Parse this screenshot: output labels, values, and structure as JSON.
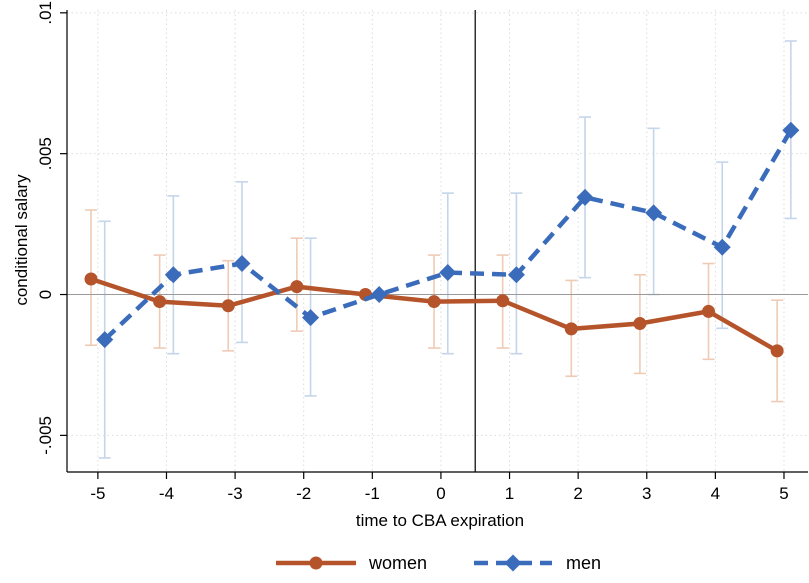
{
  "chart_data": {
    "type": "line",
    "xlabel": "time to CBA expiration",
    "ylabel": "conditional salary",
    "x_ticks": [
      -5,
      -4,
      -3,
      -2,
      -1,
      0,
      1,
      2,
      3,
      4,
      5
    ],
    "x_tick_labels": [
      "-5",
      "-4",
      "-3",
      "-2",
      "-1",
      "0",
      "1",
      "2",
      "3",
      "4",
      "5"
    ],
    "y_ticks": [
      -0.005,
      0,
      0.005,
      0.01
    ],
    "y_tick_labels": [
      "-.005",
      "0",
      ".005",
      ".01"
    ],
    "xlim": [
      -5.45,
      5.35
    ],
    "ylim": [
      -0.0063,
      0.0101
    ],
    "grid": true,
    "reference_lines": {
      "horizontal_y": 0,
      "vertical_x": 0.5
    },
    "legend_position": "bottom",
    "series": [
      {
        "name": "women",
        "color": "#b5542a",
        "ci_color": "#efcbb5",
        "line_style": "solid",
        "marker": "circle",
        "x": [
          -5.1,
          -4.1,
          -3.1,
          -2.1,
          -1.1,
          -0.1,
          0.9,
          1.9,
          2.9,
          3.9,
          4.9
        ],
        "y": [
          0.00055,
          -0.00025,
          -0.0004,
          0.00028,
          0.0,
          -0.00025,
          -0.00022,
          -0.00122,
          -0.00103,
          -0.0006,
          -0.002
        ],
        "ci_low": [
          -0.0018,
          -0.0019,
          -0.002,
          -0.0013,
          null,
          -0.0019,
          -0.0019,
          -0.0029,
          -0.0028,
          -0.0023,
          -0.0038
        ],
        "ci_high": [
          0.003,
          0.0014,
          0.0012,
          0.002,
          null,
          0.0014,
          0.0014,
          0.0005,
          0.0007,
          0.0011,
          -0.0002
        ]
      },
      {
        "name": "men",
        "color": "#3a6cbb",
        "ci_color": "#c5d5ea",
        "line_style": "dashed",
        "marker": "diamond",
        "x": [
          -4.9,
          -3.9,
          -2.9,
          -1.9,
          -0.9,
          0.1,
          1.1,
          2.1,
          3.1,
          4.1,
          5.1
        ],
        "y": [
          -0.0016,
          0.0007,
          0.0011,
          -0.00082,
          0.0,
          0.00078,
          0.0007,
          0.00345,
          0.0029,
          0.00168,
          0.00583
        ],
        "ci_low": [
          -0.0058,
          -0.0021,
          -0.0017,
          -0.0036,
          null,
          -0.0021,
          -0.0021,
          0.0006,
          0.0,
          -0.0012,
          0.0027
        ],
        "ci_high": [
          0.0026,
          0.0035,
          0.004,
          0.002,
          null,
          0.0036,
          0.0036,
          0.0063,
          0.0059,
          0.0047,
          0.009
        ]
      }
    ]
  }
}
